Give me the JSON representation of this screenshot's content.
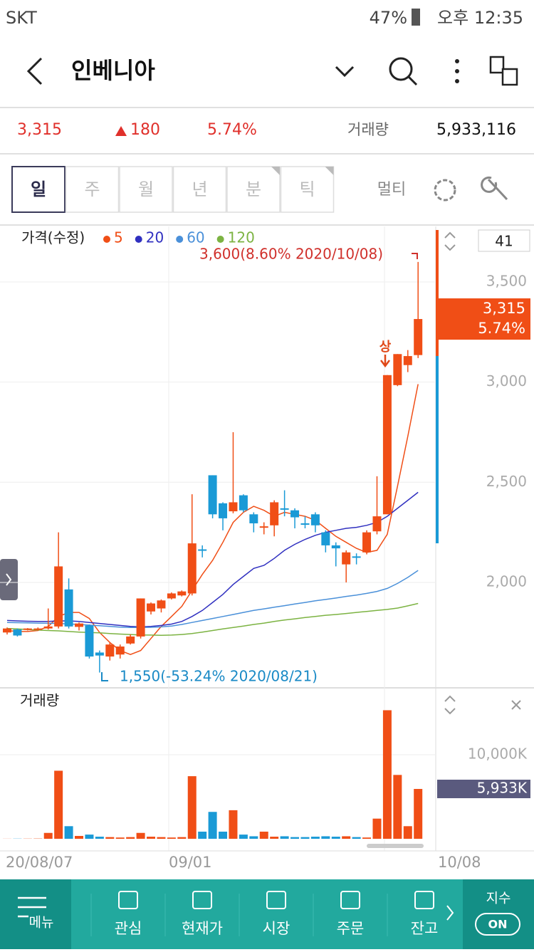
{
  "status_bar": {
    "carrier": "SKT",
    "battery": "47%",
    "time": "오후 12:35"
  },
  "header": {
    "title": "인베니아"
  },
  "quote": {
    "price": "3,315",
    "change": "180",
    "change_pct": "5.74%",
    "volume_label": "거래량",
    "volume": "5,933,116"
  },
  "tabs": [
    "일",
    "주",
    "월",
    "년",
    "분",
    "틱"
  ],
  "multi": "멀티",
  "price_chart": {
    "legend_title": "가격(수정)",
    "ma_legend": [
      {
        "name": "5",
        "color": "#f04e16"
      },
      {
        "name": "20",
        "color": "#3030c0"
      },
      {
        "name": "60",
        "color": "#4a90d9"
      },
      {
        "name": "120",
        "color": "#7cb342"
      }
    ],
    "count": "41",
    "yticks": [
      {
        "value": 3500,
        "label": "3,500"
      },
      {
        "value": 3000,
        "label": "3,000"
      },
      {
        "value": 2500,
        "label": "2,500"
      },
      {
        "value": 2000,
        "label": "2,000"
      }
    ],
    "current": {
      "value": 3315,
      "label": "3,315",
      "pct": "5.74%"
    },
    "high_note": "3,600(8.60% 2020/10/08)",
    "low_note": "1,550(-53.24% 2020/08/21)",
    "limit_up": "상",
    "candles": [
      {
        "o": 1750,
        "h": 1775,
        "l": 1740,
        "c": 1770
      },
      {
        "o": 1765,
        "h": 1770,
        "l": 1730,
        "c": 1735
      },
      {
        "o": 1765,
        "h": 1772,
        "l": 1760,
        "c": 1770
      },
      {
        "o": 1765,
        "h": 1775,
        "l": 1760,
        "c": 1770
      },
      {
        "o": 1770,
        "h": 1870,
        "l": 1765,
        "c": 1780
      },
      {
        "o": 1780,
        "h": 2250,
        "l": 1770,
        "c": 2080
      },
      {
        "o": 1965,
        "h": 2020,
        "l": 1770,
        "c": 1780
      },
      {
        "o": 1778,
        "h": 1800,
        "l": 1760,
        "c": 1795
      },
      {
        "o": 1785,
        "h": 1790,
        "l": 1620,
        "c": 1630
      },
      {
        "o": 1650,
        "h": 1660,
        "l": 1550,
        "c": 1635
      },
      {
        "o": 1630,
        "h": 1700,
        "l": 1610,
        "c": 1690
      },
      {
        "o": 1640,
        "h": 1690,
        "l": 1620,
        "c": 1680
      },
      {
        "o": 1695,
        "h": 1740,
        "l": 1690,
        "c": 1730
      },
      {
        "o": 1730,
        "h": 1920,
        "l": 1720,
        "c": 1920
      },
      {
        "o": 1855,
        "h": 1900,
        "l": 1840,
        "c": 1895
      },
      {
        "o": 1870,
        "h": 1915,
        "l": 1850,
        "c": 1910
      },
      {
        "o": 1920,
        "h": 1950,
        "l": 1915,
        "c": 1945
      },
      {
        "o": 1935,
        "h": 1960,
        "l": 1930,
        "c": 1955
      },
      {
        "o": 1945,
        "h": 2440,
        "l": 1935,
        "c": 2195
      },
      {
        "o": 2165,
        "h": 2185,
        "l": 2125,
        "c": 2160
      },
      {
        "o": 2535,
        "h": 2535,
        "l": 2320,
        "c": 2340
      },
      {
        "o": 2395,
        "h": 2400,
        "l": 2260,
        "c": 2320
      },
      {
        "o": 2355,
        "h": 2750,
        "l": 2345,
        "c": 2400
      },
      {
        "o": 2435,
        "h": 2440,
        "l": 2350,
        "c": 2360
      },
      {
        "o": 2340,
        "h": 2350,
        "l": 2250,
        "c": 2295
      },
      {
        "o": 2275,
        "h": 2300,
        "l": 2240,
        "c": 2280
      },
      {
        "o": 2285,
        "h": 2410,
        "l": 2230,
        "c": 2400
      },
      {
        "o": 2370,
        "h": 2460,
        "l": 2330,
        "c": 2365
      },
      {
        "o": 2360,
        "h": 2370,
        "l": 2270,
        "c": 2325
      },
      {
        "o": 2295,
        "h": 2330,
        "l": 2270,
        "c": 2290
      },
      {
        "o": 2340,
        "h": 2350,
        "l": 2250,
        "c": 2285
      },
      {
        "o": 2250,
        "h": 2260,
        "l": 2150,
        "c": 2185
      },
      {
        "o": 2185,
        "h": 2200,
        "l": 2080,
        "c": 2170
      },
      {
        "o": 2090,
        "h": 2160,
        "l": 2000,
        "c": 2150
      },
      {
        "o": 2130,
        "h": 2145,
        "l": 2090,
        "c": 2125
      },
      {
        "o": 2150,
        "h": 2260,
        "l": 2140,
        "c": 2250
      },
      {
        "o": 2255,
        "h": 2530,
        "l": 2240,
        "c": 2330
      },
      {
        "o": 2340,
        "h": 3035,
        "l": 2340,
        "c": 3035
      },
      {
        "o": 2985,
        "h": 3140,
        "l": 2980,
        "c": 3140
      },
      {
        "o": 3085,
        "h": 3160,
        "l": 3050,
        "c": 3130
      },
      {
        "o": 3135,
        "h": 3600,
        "l": 3120,
        "c": 3315
      }
    ],
    "ma": [
      {
        "name": "5",
        "values": [
          1760,
          1755,
          1755,
          1760,
          1780,
          1830,
          1850,
          1850,
          1820,
          1750,
          1700,
          1660,
          1640,
          1660,
          1720,
          1780,
          1830,
          1880,
          1960,
          2040,
          2110,
          2200,
          2300,
          2350,
          2380,
          2360,
          2330,
          2350,
          2340,
          2330,
          2310,
          2270,
          2230,
          2200,
          2170,
          2150,
          2160,
          2240,
          2480,
          2730,
          2990
        ]
      },
      {
        "name": "20",
        "values": [
          1810,
          1808,
          1806,
          1805,
          1805,
          1808,
          1808,
          1805,
          1800,
          1795,
          1790,
          1785,
          1780,
          1778,
          1780,
          1785,
          1792,
          1805,
          1830,
          1860,
          1900,
          1940,
          1990,
          2030,
          2070,
          2085,
          2120,
          2160,
          2190,
          2215,
          2235,
          2250,
          2260,
          2270,
          2275,
          2285,
          2300,
          2330,
          2370,
          2410,
          2450
        ]
      },
      {
        "name": "60",
        "values": [
          1800,
          1799,
          1798,
          1797,
          1796,
          1795,
          1793,
          1790,
          1787,
          1784,
          1780,
          1777,
          1775,
          1775,
          1776,
          1778,
          1782,
          1790,
          1800,
          1810,
          1820,
          1830,
          1840,
          1850,
          1860,
          1868,
          1876,
          1884,
          1892,
          1900,
          1908,
          1915,
          1922,
          1930,
          1937,
          1945,
          1955,
          1970,
          1995,
          2025,
          2060
        ]
      },
      {
        "name": "120",
        "values": [
          1770,
          1768,
          1765,
          1762,
          1760,
          1758,
          1755,
          1752,
          1750,
          1748,
          1745,
          1742,
          1740,
          1738,
          1737,
          1736,
          1737,
          1740,
          1745,
          1752,
          1760,
          1768,
          1775,
          1782,
          1790,
          1797,
          1805,
          1812,
          1818,
          1825,
          1830,
          1836,
          1840,
          1845,
          1850,
          1855,
          1860,
          1865,
          1872,
          1883,
          1895
        ]
      }
    ]
  },
  "volume_chart": {
    "title": "거래량",
    "yticks": [
      {
        "value": 10000,
        "label": "10,000K"
      }
    ],
    "current": {
      "value": 5933,
      "label": "5,933K"
    },
    "values": [
      10,
      20,
      20,
      30,
      700,
      8100,
      1500,
      340,
      500,
      250,
      200,
      150,
      200,
      700,
      250,
      200,
      150,
      200,
      7450,
      850,
      3200,
      850,
      3400,
      500,
      300,
      850,
      250,
      300,
      200,
      200,
      250,
      300,
      250,
      300,
      200,
      150,
      2400,
      15300,
      7600,
      1500,
      5933
    ]
  },
  "x_labels": [
    "20/08/07",
    "09/01",
    "10/08"
  ],
  "nav": [
    "메뉴",
    "관심",
    "현재가",
    "시장",
    "주문",
    "잔고"
  ],
  "nav_right": {
    "label": "지수",
    "button": "ON"
  }
}
